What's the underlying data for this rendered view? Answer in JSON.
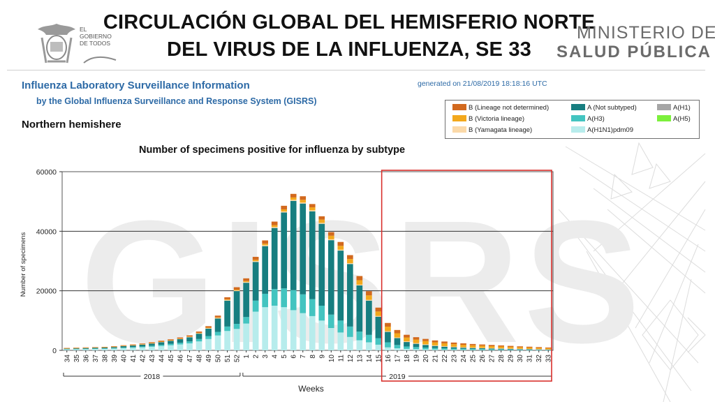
{
  "slide": {
    "title_line1": "CIRCULACIÓN GLOBAL DEL HEMISFERIO NORTE",
    "title_line2": "DEL VIRUS DE LA INFLUENZA, SE 33",
    "gov_logo_text": [
      "EL",
      "GOBIERNO",
      "DE TODOS"
    ],
    "ministry_line1": "MINISTERIO DE",
    "ministry_line2": "SALUD PÚBLICA",
    "watermark": "GISRS"
  },
  "header": {
    "title": "Influenza Laboratory Surveillance Information",
    "subtitle": "by the Global Influenza Surveillance and Response System (GISRS)",
    "generated": "generated on 21/08/2019 18:18:16 UTC",
    "hemisphere": "Northern hemishere"
  },
  "legend": {
    "items": [
      {
        "label": "B (Lineage not determined)",
        "color": "#d2691e"
      },
      {
        "label": "B (Victoria lineage)",
        "color": "#f3a81c"
      },
      {
        "label": "B (Yamagata lineage)",
        "color": "#fbd9a8"
      },
      {
        "label": "A (Not subtyped)",
        "color": "#177e80"
      },
      {
        "label": "A(H3)",
        "color": "#43c4c0"
      },
      {
        "label": "A(H1N1)pdm09",
        "color": "#b7ecec"
      },
      {
        "label": "A(H1)",
        "color": "#a6a6a6"
      },
      {
        "label": "A(H5)",
        "color": "#7cf03c"
      }
    ]
  },
  "chart_data": {
    "type": "bar",
    "stacked": true,
    "title": "Number of specimens positive for influenza by subtype",
    "xlabel": "Weeks",
    "ylabel": "Number of specimens",
    "ylim": [
      0,
      60000
    ],
    "yticks": [
      0,
      20000,
      40000,
      60000
    ],
    "grid": true,
    "legend_position": "top-right",
    "year_groups": [
      {
        "label": "2018",
        "from": "34",
        "to": "52"
      },
      {
        "label": "2019",
        "from": "1",
        "to": "33"
      }
    ],
    "highlight": {
      "from": "16",
      "to": "33",
      "color": "#d9302c"
    },
    "categories": [
      "34",
      "35",
      "36",
      "37",
      "38",
      "39",
      "40",
      "41",
      "42",
      "43",
      "44",
      "45",
      "46",
      "47",
      "48",
      "49",
      "50",
      "51",
      "52",
      "1",
      "2",
      "3",
      "4",
      "5",
      "6",
      "7",
      "8",
      "9",
      "10",
      "11",
      "12",
      "13",
      "14",
      "15",
      "16",
      "17",
      "18",
      "19",
      "20",
      "21",
      "22",
      "23",
      "24",
      "25",
      "26",
      "27",
      "28",
      "29",
      "30",
      "31",
      "32",
      "33"
    ],
    "series": [
      {
        "name": "A(H1N1)pdm09",
        "color": "#b7ecec",
        "values": [
          300,
          350,
          400,
          450,
          500,
          600,
          750,
          850,
          1000,
          1200,
          1450,
          1700,
          2000,
          2350,
          3000,
          3800,
          5000,
          6500,
          7200,
          9000,
          13000,
          14500,
          15000,
          14500,
          13500,
          12500,
          11500,
          10000,
          7500,
          6000,
          4500,
          3400,
          2700,
          1900,
          1000,
          700,
          500,
          400,
          330,
          280,
          230,
          190,
          160,
          140,
          120,
          100,
          90,
          80,
          70,
          60,
          50,
          40
        ]
      },
      {
        "name": "A(H3)",
        "color": "#43c4c0",
        "values": [
          100,
          100,
          100,
          120,
          120,
          150,
          200,
          250,
          300,
          350,
          400,
          500,
          550,
          650,
          800,
          1000,
          1200,
          1500,
          1700,
          2200,
          3700,
          4500,
          5600,
          6300,
          6700,
          6300,
          5700,
          5000,
          4500,
          4000,
          3500,
          2900,
          2500,
          2200,
          1700,
          1100,
          800,
          700,
          600,
          500,
          450,
          400,
          360,
          320,
          290,
          260,
          240,
          210,
          190,
          170,
          150,
          130
        ]
      },
      {
        "name": "A (Not subtyped)",
        "color": "#177e80",
        "values": [
          200,
          250,
          300,
          330,
          350,
          400,
          500,
          550,
          650,
          750,
          900,
          1000,
          1200,
          1400,
          1800,
          2500,
          4500,
          8700,
          11000,
          11500,
          13000,
          16000,
          20500,
          25500,
          30000,
          30500,
          29500,
          27500,
          25000,
          23500,
          21000,
          15500,
          11500,
          7200,
          3500,
          2300,
          1500,
          1100,
          900,
          700,
          550,
          450,
          370,
          320,
          290,
          260,
          220,
          190,
          160,
          140,
          120,
          100
        ]
      },
      {
        "name": "A(H1)",
        "color": "#a6a6a6",
        "values": [
          0,
          0,
          0,
          0,
          0,
          0,
          0,
          0,
          0,
          0,
          0,
          0,
          0,
          0,
          0,
          0,
          0,
          0,
          0,
          0,
          0,
          0,
          0,
          0,
          0,
          0,
          0,
          0,
          0,
          0,
          0,
          0,
          0,
          0,
          0,
          0,
          0,
          0,
          0,
          0,
          0,
          0,
          0,
          0,
          0,
          0,
          0,
          0,
          0,
          0,
          0,
          0
        ]
      },
      {
        "name": "A(H5)",
        "color": "#7cf03c",
        "values": [
          0,
          0,
          0,
          0,
          0,
          0,
          0,
          0,
          0,
          0,
          0,
          0,
          0,
          0,
          0,
          0,
          0,
          0,
          0,
          0,
          0,
          0,
          0,
          0,
          0,
          0,
          0,
          0,
          0,
          0,
          0,
          0,
          0,
          0,
          0,
          0,
          0,
          0,
          0,
          0,
          0,
          0,
          0,
          0,
          0,
          0,
          0,
          0,
          0,
          0,
          0,
          0
        ]
      },
      {
        "name": "B (Yamagata lineage)",
        "color": "#fbd9a8",
        "values": [
          50,
          50,
          50,
          50,
          50,
          50,
          60,
          70,
          80,
          90,
          100,
          110,
          120,
          130,
          150,
          170,
          200,
          230,
          250,
          280,
          300,
          320,
          340,
          350,
          350,
          350,
          340,
          320,
          300,
          300,
          280,
          260,
          260,
          250,
          250,
          240,
          230,
          220,
          210,
          200,
          190,
          180,
          170,
          160,
          150,
          140,
          130,
          120,
          110,
          100,
          90,
          80
        ]
      },
      {
        "name": "B (Victoria lineage)",
        "color": "#f3a81c",
        "values": [
          50,
          50,
          50,
          50,
          50,
          50,
          50,
          60,
          60,
          70,
          80,
          80,
          100,
          110,
          120,
          150,
          170,
          200,
          250,
          300,
          400,
          500,
          600,
          700,
          800,
          900,
          1000,
          1100,
          1200,
          1300,
          1400,
          1500,
          1500,
          1500,
          1500,
          1400,
          1300,
          1200,
          1100,
          1000,
          950,
          850,
          800,
          750,
          700,
          650,
          600,
          550,
          500,
          450,
          400,
          350
        ]
      },
      {
        "name": "B (Lineage not determined)",
        "color": "#d2691e",
        "values": [
          100,
          100,
          100,
          100,
          100,
          150,
          150,
          200,
          200,
          250,
          300,
          300,
          350,
          400,
          450,
          500,
          600,
          700,
          800,
          900,
          1000,
          1100,
          1200,
          1200,
          1200,
          1200,
          1100,
          1100,
          1200,
          1300,
          1300,
          1400,
          1400,
          1300,
          1250,
          1100,
          900,
          800,
          700,
          650,
          600,
          550,
          500,
          450,
          420,
          400,
          380,
          350,
          320,
          300,
          280,
          250
        ]
      }
    ]
  }
}
